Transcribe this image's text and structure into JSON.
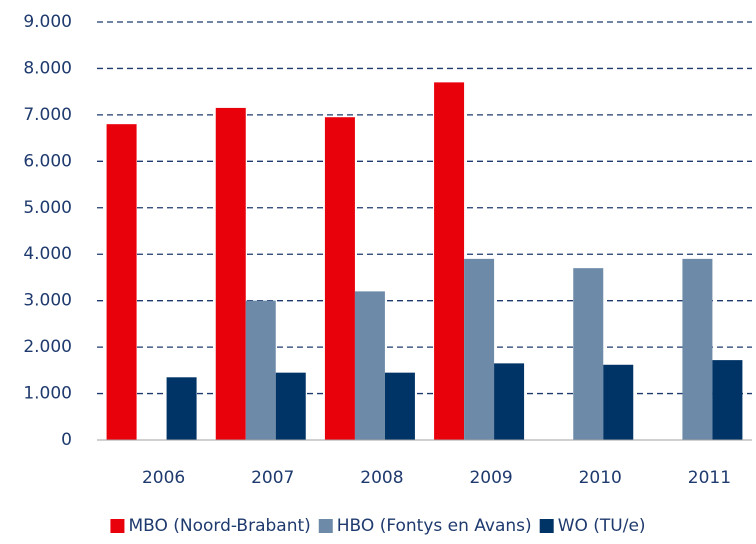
{
  "chart_data": {
    "type": "bar",
    "categories": [
      "2006",
      "2007",
      "2008",
      "2009",
      "2010",
      "2011"
    ],
    "series": [
      {
        "name": "MBO (Noord-Brabant)",
        "color": "#e8000b",
        "values": [
          6800,
          7150,
          6950,
          7700,
          null,
          null
        ]
      },
      {
        "name": "HBO (Fontys en Avans)",
        "color": "#6d8ba8",
        "values": [
          null,
          3000,
          3200,
          3900,
          3700,
          3900
        ]
      },
      {
        "name": "WO (TU/e)",
        "color": "#003366",
        "values": [
          1350,
          1450,
          1450,
          1650,
          1620,
          1720
        ]
      }
    ],
    "ylim": [
      0,
      9000
    ],
    "yticks": [
      0,
      {
        "value": 1000,
        "label": "1.000"
      },
      {
        "value": 2000,
        "label": "2.000"
      },
      {
        "value": 3000,
        "label": "3.000"
      },
      {
        "value": 4000,
        "label": "4.000"
      },
      {
        "value": 5000,
        "label": "5.000"
      },
      {
        "value": 6000,
        "label": "6.000"
      },
      {
        "value": 7000,
        "label": "7.000"
      },
      {
        "value": 8000,
        "label": "8.000"
      },
      {
        "value": 9000,
        "label": "9.000"
      }
    ],
    "grid": true,
    "legend": "bottom"
  }
}
